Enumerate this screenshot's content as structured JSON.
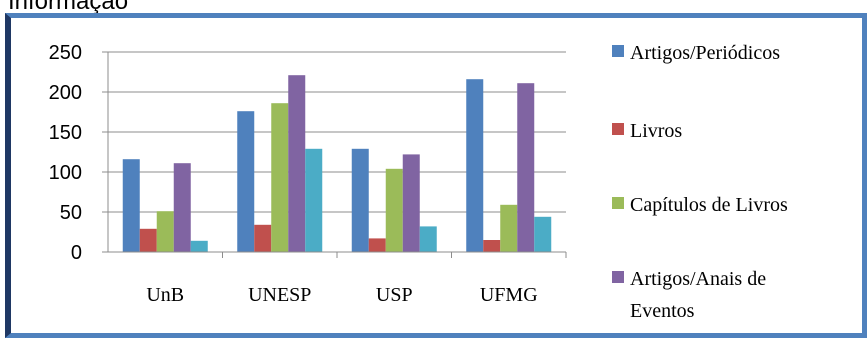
{
  "header": {
    "title": "Informação"
  },
  "chart_data": {
    "type": "bar",
    "categories": [
      "UnB",
      "UNESP",
      "USP",
      "UFMG"
    ],
    "ylim": [
      0,
      250
    ],
    "yticks": [
      0,
      50,
      100,
      150,
      200,
      250
    ],
    "grid": true,
    "legend_position": "right",
    "series": [
      {
        "name": "Artigos/Periódicos",
        "color": "#4f81bd",
        "values": [
          116,
          176,
          129,
          216
        ]
      },
      {
        "name": "Livros",
        "color": "#c0504d",
        "values": [
          29,
          34,
          17,
          15
        ]
      },
      {
        "name": "Capítulos de Livros",
        "color": "#9bbb59",
        "values": [
          51,
          186,
          104,
          59
        ]
      },
      {
        "name": "Artigos/Anais de Eventos",
        "color": "#8064a2",
        "values": [
          111,
          221,
          122,
          211
        ]
      },
      {
        "name": "",
        "color": "#4bacc6",
        "values": [
          14,
          129,
          32,
          44
        ]
      }
    ],
    "legend_lines": [
      [
        "Artigos/Periódicos"
      ],
      [
        "Livros"
      ],
      [
        "Capítulos de Livros"
      ],
      [
        "Artigos/Anais de",
        "Eventos"
      ]
    ]
  }
}
